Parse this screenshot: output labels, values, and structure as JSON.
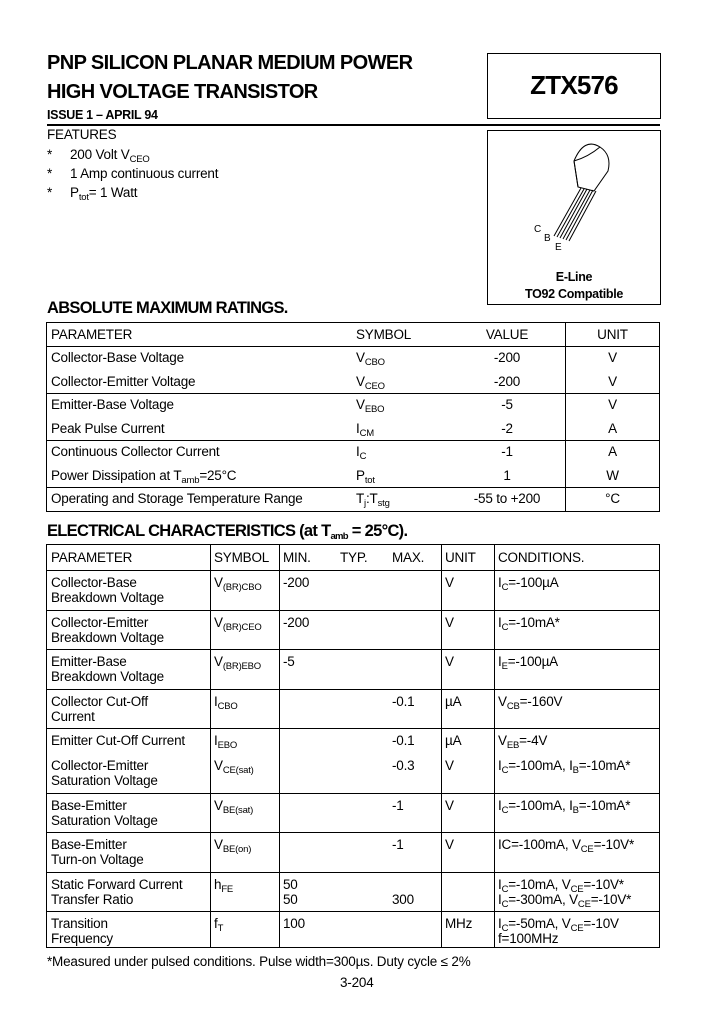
{
  "header": {
    "title_line1": "PNP SILICON PLANAR MEDIUM POWER",
    "title_line2": "HIGH VOLTAGE TRANSISTOR",
    "issue": "ISSUE 1 – APRIL 94",
    "part_number": "ZTX576"
  },
  "features": {
    "heading": "FEATURES",
    "bullet": "*",
    "items": [
      [
        {
          "t": "200 Volt V"
        },
        {
          "sub": "CEO"
        }
      ],
      [
        {
          "t": "1 Amp continuous current"
        }
      ],
      [
        {
          "t": "P"
        },
        {
          "sub": "tot"
        },
        {
          "t": "= 1 Watt"
        }
      ]
    ]
  },
  "package": {
    "pins": [
      "C",
      "B",
      "E"
    ],
    "line1": "E-Line",
    "line2": "TO92 Compatible"
  },
  "abs_max": {
    "heading": "ABSOLUTE MAXIMUM RATINGS.",
    "headers": [
      "PARAMETER",
      "SYMBOL",
      "VALUE",
      "UNIT"
    ],
    "rows": [
      {
        "param": [
          {
            "t": "Collector-Base Voltage"
          }
        ],
        "symbol": [
          {
            "t": "V"
          },
          {
            "sub": "CBO"
          }
        ],
        "value": "-200",
        "unit": "V"
      },
      {
        "param": [
          {
            "t": "Collector-Emitter Voltage"
          }
        ],
        "symbol": [
          {
            "t": "V"
          },
          {
            "sub": "CEO"
          }
        ],
        "value": "-200",
        "unit": "V"
      },
      {
        "param": [
          {
            "t": "Emitter-Base Voltage"
          }
        ],
        "symbol": [
          {
            "t": "V"
          },
          {
            "sub": "EBO"
          }
        ],
        "value": "-5",
        "unit": "V"
      },
      {
        "param": [
          {
            "t": "Peak Pulse Current"
          }
        ],
        "symbol": [
          {
            "t": "I"
          },
          {
            "sub": "CM"
          }
        ],
        "value": "-2",
        "unit": "A"
      },
      {
        "param": [
          {
            "t": "Continuous Collector Current"
          }
        ],
        "symbol": [
          {
            "t": "I"
          },
          {
            "sub": "C"
          }
        ],
        "value": "-1",
        "unit": "A"
      },
      {
        "param": [
          {
            "t": "Power Dissipation at T"
          },
          {
            "sub": "amb"
          },
          {
            "t": "=25°C"
          }
        ],
        "symbol": [
          {
            "t": "P"
          },
          {
            "sub": "tot"
          }
        ],
        "value": "1",
        "unit": "W"
      },
      {
        "param": [
          {
            "t": "Operating and Storage Temperature Range"
          }
        ],
        "symbol": [
          {
            "t": "T"
          },
          {
            "sub": "j"
          },
          {
            "t": ":T"
          },
          {
            "sub": "stg"
          }
        ],
        "value": "-55 to +200",
        "unit": "°C"
      }
    ]
  },
  "electrical": {
    "heading": [
      {
        "t": "ELECTRICAL CHARACTERISTICS (at T"
      },
      {
        "sub": "amb"
      },
      {
        "t": " = 25°C)."
      }
    ],
    "headers": [
      "PARAMETER",
      "SYMBOL",
      "MIN.",
      "TYP.",
      "MAX.",
      "UNIT",
      "CONDITIONS."
    ],
    "rows": [
      {
        "param": [
          "Collector-Base",
          "Breakdown Voltage"
        ],
        "symbol": [
          {
            "t": "V"
          },
          {
            "sub": "(BR)CBO"
          }
        ],
        "min": [
          "-200"
        ],
        "typ": "",
        "max": [
          ""
        ],
        "unit": "V",
        "cond": [
          [
            {
              "t": "I"
            },
            {
              "sub": "C"
            },
            {
              "t": "=-100µA"
            }
          ]
        ]
      },
      {
        "param": [
          "Collector-Emitter",
          "Breakdown Voltage"
        ],
        "symbol": [
          {
            "t": "V"
          },
          {
            "sub": "(BR)CEO"
          }
        ],
        "min": [
          "-200"
        ],
        "typ": "",
        "max": [
          ""
        ],
        "unit": "V",
        "cond": [
          [
            {
              "t": "I"
            },
            {
              "sub": "C"
            },
            {
              "t": "=-10mA*"
            }
          ]
        ]
      },
      {
        "param": [
          "Emitter-Base",
          "Breakdown Voltage"
        ],
        "symbol": [
          {
            "t": "V"
          },
          {
            "sub": "(BR)EBO"
          }
        ],
        "min": [
          "-5"
        ],
        "typ": "",
        "max": [
          ""
        ],
        "unit": "V",
        "cond": [
          [
            {
              "t": "I"
            },
            {
              "sub": "E"
            },
            {
              "t": "=-100µA"
            }
          ]
        ]
      },
      {
        "param": [
          "Collector Cut-Off",
          "Current"
        ],
        "symbol": [
          {
            "t": "I"
          },
          {
            "sub": "CBO"
          }
        ],
        "min": [
          ""
        ],
        "typ": "",
        "max": [
          "-0.1"
        ],
        "unit": "µA",
        "cond": [
          [
            {
              "t": "V"
            },
            {
              "sub": "CB"
            },
            {
              "t": "=-160V"
            }
          ]
        ]
      },
      {
        "param": [
          "Emitter Cut-Off Current"
        ],
        "symbol": [
          {
            "t": "I"
          },
          {
            "sub": "EBO"
          }
        ],
        "min": [
          ""
        ],
        "typ": "",
        "max": [
          "-0.1"
        ],
        "unit": "µA",
        "cond": [
          [
            {
              "t": "V"
            },
            {
              "sub": "EB"
            },
            {
              "t": "=-4V"
            }
          ]
        ]
      },
      {
        "param": [
          "Collector-Emitter",
          "Saturation Voltage"
        ],
        "symbol": [
          {
            "t": "V"
          },
          {
            "sub": "CE(sat)"
          }
        ],
        "min": [
          ""
        ],
        "typ": "",
        "max": [
          "-0.3"
        ],
        "unit": "V",
        "cond": [
          [
            {
              "t": "I"
            },
            {
              "sub": "C"
            },
            {
              "t": "=-100mA, I"
            },
            {
              "sub": "B"
            },
            {
              "t": "=-10mA*"
            }
          ]
        ]
      },
      {
        "param": [
          "Base-Emitter",
          "Saturation Voltage"
        ],
        "symbol": [
          {
            "t": "V"
          },
          {
            "sub": "BE(sat)"
          }
        ],
        "min": [
          ""
        ],
        "typ": "",
        "max": [
          "-1"
        ],
        "unit": "V",
        "cond": [
          [
            {
              "t": "I"
            },
            {
              "sub": "C"
            },
            {
              "t": "=-100mA, I"
            },
            {
              "sub": "B"
            },
            {
              "t": "=-10mA*"
            }
          ]
        ]
      },
      {
        "param": [
          "Base-Emitter",
          "Turn-on Voltage"
        ],
        "symbol": [
          {
            "t": "V"
          },
          {
            "sub": "BE(on)"
          }
        ],
        "min": [
          ""
        ],
        "typ": "",
        "max": [
          "-1"
        ],
        "unit": "V",
        "cond": [
          [
            {
              "t": "IC=-100mA, V"
            },
            {
              "sub": "CE"
            },
            {
              "t": "=-10V*"
            }
          ]
        ]
      },
      {
        "param": [
          "Static Forward Current",
          "Transfer Ratio"
        ],
        "symbol": [
          {
            "t": "h"
          },
          {
            "sub": "FE"
          }
        ],
        "min": [
          "50",
          "50"
        ],
        "typ": "",
        "max": [
          "",
          "300"
        ],
        "unit": "",
        "cond": [
          [
            {
              "t": "I"
            },
            {
              "sub": "C"
            },
            {
              "t": "=-10mA, V"
            },
            {
              "sub": "CE"
            },
            {
              "t": "=-10V*"
            }
          ],
          [
            {
              "t": "I"
            },
            {
              "sub": "C"
            },
            {
              "t": "=-300mA, V"
            },
            {
              "sub": "CE"
            },
            {
              "t": "=-10V*"
            }
          ]
        ]
      },
      {
        "param": [
          "Transition",
          "Frequency"
        ],
        "symbol": [
          {
            "t": "f"
          },
          {
            "sub": "T"
          }
        ],
        "min": [
          "100"
        ],
        "typ": "",
        "max": [
          ""
        ],
        "unit": "MHz",
        "cond": [
          [
            {
              "t": "I"
            },
            {
              "sub": "C"
            },
            {
              "t": "=-50mA, V"
            },
            {
              "sub": "CE"
            },
            {
              "t": "=-10V"
            }
          ],
          [
            {
              "t": "f=100MHz"
            }
          ]
        ]
      }
    ]
  },
  "footnote": "*Measured under pulsed conditions. Pulse width=300µs. Duty cycle ≤ 2%",
  "page_number": "3-204"
}
